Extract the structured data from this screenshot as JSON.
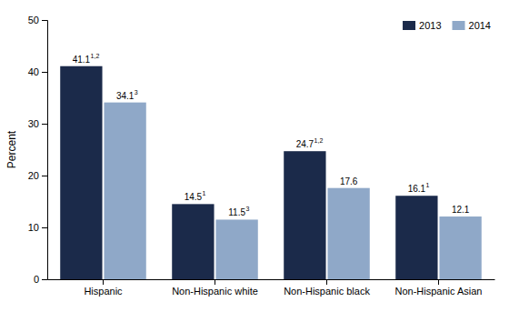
{
  "chart_data": {
    "type": "bar",
    "categories": [
      "Hispanic",
      "Non-Hispanic white",
      "Non-Hispanic black",
      "Non-Hispanic Asian"
    ],
    "series": [
      {
        "name": "2013",
        "color": "#1b2a4a",
        "values": [
          41.1,
          14.5,
          24.7,
          16.1
        ],
        "superscripts": [
          "1,2",
          "1",
          "1,2",
          "1"
        ]
      },
      {
        "name": "2014",
        "color": "#8fa8c8",
        "values": [
          34.1,
          11.5,
          17.6,
          12.1
        ],
        "superscripts": [
          "3",
          "3",
          null,
          null
        ]
      }
    ],
    "ylabel": "Percent",
    "ylim": [
      0,
      50
    ],
    "yticks": [
      0,
      10,
      20,
      30,
      40,
      50
    ],
    "data_labels": true,
    "legend": "upper right",
    "grid": false
  }
}
